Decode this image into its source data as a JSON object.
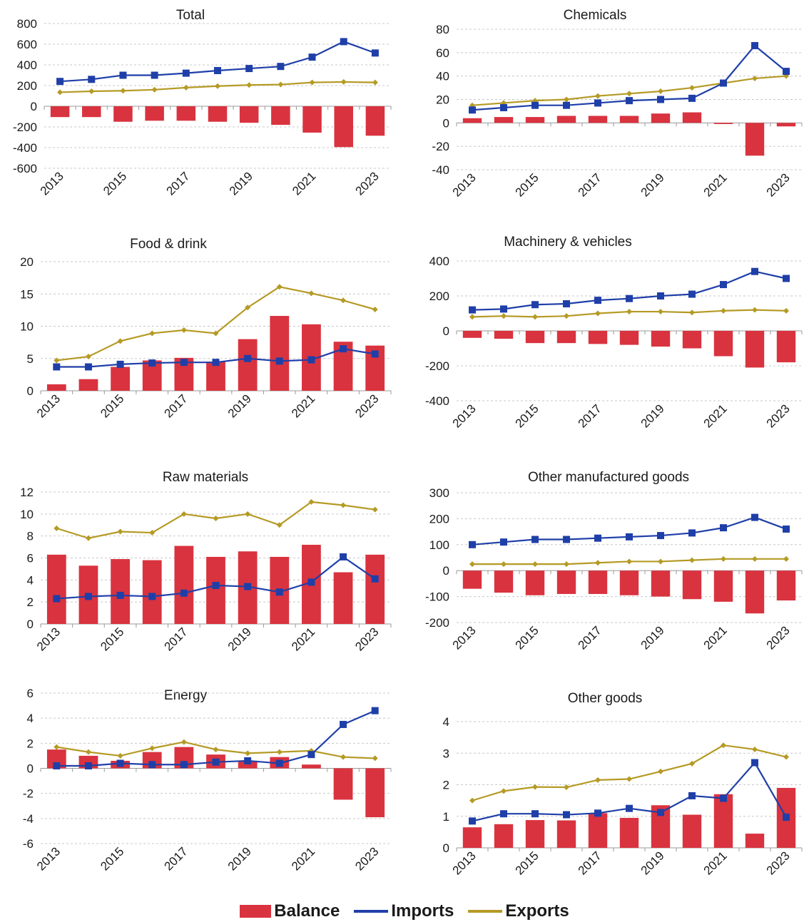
{
  "colors": {
    "balance": "#d9333f",
    "imports": "#1f3fa8",
    "exports": "#b59a25"
  },
  "legend": {
    "balance": "Balance",
    "imports": "Imports",
    "exports": "Exports"
  },
  "chart_data": [
    {
      "type": "bar",
      "title": "Total",
      "years": [
        "2013",
        "2014",
        "2015",
        "2016",
        "2017",
        "2018",
        "2019",
        "2020",
        "2021",
        "2022",
        "2023"
      ],
      "year_labels": [
        "2013",
        "2015",
        "2017",
        "2019",
        "2021",
        "2023"
      ],
      "ylim": [
        -600,
        800
      ],
      "yticks": [
        -600,
        -400,
        -200,
        0,
        200,
        400,
        600,
        800
      ],
      "series": [
        {
          "name": "Balance",
          "type": "bar",
          "values": [
            -105,
            -105,
            -150,
            -140,
            -140,
            -150,
            -160,
            -180,
            -255,
            -395,
            -285
          ]
        },
        {
          "name": "Imports",
          "type": "line",
          "values": [
            240,
            260,
            300,
            300,
            320,
            345,
            365,
            385,
            475,
            625,
            515
          ]
        },
        {
          "name": "Exports",
          "type": "line",
          "values": [
            135,
            145,
            150,
            160,
            180,
            195,
            205,
            210,
            230,
            235,
            230
          ]
        }
      ]
    },
    {
      "type": "bar",
      "title": "Chemicals",
      "years": [
        "2013",
        "2014",
        "2015",
        "2016",
        "2017",
        "2018",
        "2019",
        "2020",
        "2021",
        "2022",
        "2023"
      ],
      "year_labels": [
        "2013",
        "2015",
        "2017",
        "2019",
        "2021",
        "2023"
      ],
      "ylim": [
        -40,
        80
      ],
      "yticks": [
        -40,
        -20,
        0,
        20,
        40,
        60,
        80
      ],
      "series": [
        {
          "name": "Balance",
          "type": "bar",
          "values": [
            4,
            5,
            5,
            6,
            6,
            6,
            8,
            9,
            -1,
            -28,
            -3
          ]
        },
        {
          "name": "Imports",
          "type": "line",
          "values": [
            11,
            13,
            15,
            15,
            17,
            19,
            20,
            21,
            34,
            66,
            44
          ]
        },
        {
          "name": "Exports",
          "type": "line",
          "values": [
            15,
            17,
            19,
            20,
            23,
            25,
            27,
            30,
            34,
            38,
            40
          ]
        }
      ]
    },
    {
      "type": "bar",
      "title": "Food & drink",
      "years": [
        "2013",
        "2014",
        "2015",
        "2016",
        "2017",
        "2018",
        "2019",
        "2020",
        "2021",
        "2022",
        "2023"
      ],
      "year_labels": [
        "2013",
        "2015",
        "2017",
        "2019",
        "2021",
        "2023"
      ],
      "ylim": [
        0,
        20
      ],
      "yticks": [
        0,
        5,
        10,
        15,
        20
      ],
      "series": [
        {
          "name": "Balance",
          "type": "bar",
          "values": [
            1.0,
            1.8,
            3.7,
            4.7,
            5.1,
            4.5,
            8.0,
            11.6,
            10.3,
            7.6,
            7.0
          ]
        },
        {
          "name": "Imports",
          "type": "line",
          "values": [
            3.7,
            3.7,
            4.1,
            4.3,
            4.4,
            4.4,
            5.0,
            4.6,
            4.8,
            6.5,
            5.7
          ]
        },
        {
          "name": "Exports",
          "type": "line",
          "values": [
            4.7,
            5.3,
            7.7,
            8.9,
            9.4,
            8.9,
            12.9,
            16.1,
            15.1,
            14.0,
            12.6
          ]
        }
      ]
    },
    {
      "type": "bar",
      "title": "Machinery & vehicles",
      "years": [
        "2013",
        "2014",
        "2015",
        "2016",
        "2017",
        "2018",
        "2019",
        "2020",
        "2021",
        "2022",
        "2023"
      ],
      "year_labels": [
        "2013",
        "2015",
        "2017",
        "2019",
        "2021",
        "2023"
      ],
      "ylim": [
        -400,
        400
      ],
      "yticks": [
        -400,
        -200,
        0,
        200,
        400
      ],
      "series": [
        {
          "name": "Balance",
          "type": "bar",
          "values": [
            -40,
            -45,
            -70,
            -70,
            -75,
            -80,
            -90,
            -100,
            -145,
            -210,
            -180
          ]
        },
        {
          "name": "Imports",
          "type": "line",
          "values": [
            120,
            125,
            150,
            155,
            175,
            185,
            200,
            210,
            265,
            340,
            300
          ]
        },
        {
          "name": "Exports",
          "type": "line",
          "values": [
            80,
            85,
            80,
            85,
            100,
            110,
            110,
            105,
            115,
            120,
            115
          ]
        }
      ]
    },
    {
      "type": "bar",
      "title": "Raw materials",
      "years": [
        "2013",
        "2014",
        "2015",
        "2016",
        "2017",
        "2018",
        "2019",
        "2020",
        "2021",
        "2022",
        "2023"
      ],
      "year_labels": [
        "2013",
        "2015",
        "2017",
        "2019",
        "2021",
        "2023"
      ],
      "ylim": [
        0,
        12
      ],
      "yticks": [
        0,
        2,
        4,
        6,
        8,
        10,
        12
      ],
      "series": [
        {
          "name": "Balance",
          "type": "bar",
          "values": [
            6.3,
            5.3,
            5.9,
            5.8,
            7.1,
            6.1,
            6.6,
            6.1,
            7.2,
            4.7,
            6.3
          ]
        },
        {
          "name": "Imports",
          "type": "line",
          "values": [
            2.3,
            2.5,
            2.6,
            2.5,
            2.8,
            3.5,
            3.4,
            2.9,
            3.8,
            6.1,
            4.1
          ]
        },
        {
          "name": "Exports",
          "type": "line",
          "values": [
            8.7,
            7.8,
            8.4,
            8.3,
            10.0,
            9.6,
            10.0,
            9.0,
            11.1,
            10.8,
            10.4
          ]
        }
      ]
    },
    {
      "type": "bar",
      "title": "Other manufactured goods",
      "years": [
        "2013",
        "2014",
        "2015",
        "2016",
        "2017",
        "2018",
        "2019",
        "2020",
        "2021",
        "2022",
        "2023"
      ],
      "year_labels": [
        "2013",
        "2015",
        "2017",
        "2019",
        "2021",
        "2023"
      ],
      "ylim": [
        -200,
        300
      ],
      "yticks": [
        -200,
        -100,
        0,
        100,
        200,
        300
      ],
      "series": [
        {
          "name": "Balance",
          "type": "bar",
          "values": [
            -70,
            -85,
            -95,
            -90,
            -90,
            -95,
            -100,
            -110,
            -120,
            -165,
            -115
          ]
        },
        {
          "name": "Imports",
          "type": "line",
          "values": [
            100,
            110,
            120,
            120,
            125,
            130,
            135,
            145,
            165,
            205,
            160
          ]
        },
        {
          "name": "Exports",
          "type": "line",
          "values": [
            25,
            25,
            25,
            25,
            30,
            35,
            35,
            40,
            45,
            45,
            45
          ]
        }
      ]
    },
    {
      "type": "bar",
      "title": "Energy",
      "years": [
        "2013",
        "2014",
        "2015",
        "2016",
        "2017",
        "2018",
        "2019",
        "2020",
        "2021",
        "2022",
        "2023"
      ],
      "year_labels": [
        "2013",
        "2015",
        "2017",
        "2019",
        "2021",
        "2023"
      ],
      "ylim": [
        -6,
        6
      ],
      "yticks": [
        -6,
        -4,
        -2,
        0,
        2,
        4,
        6
      ],
      "series": [
        {
          "name": "Balance",
          "type": "bar",
          "values": [
            1.5,
            1.0,
            0.6,
            1.3,
            1.7,
            1.1,
            0.6,
            0.9,
            0.3,
            -2.5,
            -3.9
          ]
        },
        {
          "name": "Imports",
          "type": "line",
          "values": [
            0.2,
            0.2,
            0.4,
            0.3,
            0.3,
            0.5,
            0.6,
            0.4,
            1.1,
            3.5,
            4.6
          ]
        },
        {
          "name": "Exports",
          "type": "line",
          "values": [
            1.7,
            1.3,
            1.0,
            1.6,
            2.1,
            1.5,
            1.2,
            1.3,
            1.4,
            0.9,
            0.8
          ]
        }
      ]
    },
    {
      "type": "bar",
      "title": "Other goods",
      "years": [
        "2013",
        "2014",
        "2015",
        "2016",
        "2017",
        "2018",
        "2019",
        "2020",
        "2021",
        "2022",
        "2023"
      ],
      "year_labels": [
        "2013",
        "2015",
        "2017",
        "2019",
        "2021",
        "2023"
      ],
      "ylim": [
        0,
        4
      ],
      "yticks": [
        0,
        1,
        2,
        3,
        4
      ],
      "series": [
        {
          "name": "Balance",
          "type": "bar",
          "values": [
            0.65,
            0.75,
            0.88,
            0.87,
            1.1,
            0.95,
            1.35,
            1.05,
            1.7,
            0.45,
            1.9
          ]
        },
        {
          "name": "Imports",
          "type": "line",
          "values": [
            0.85,
            1.08,
            1.08,
            1.05,
            1.1,
            1.25,
            1.12,
            1.65,
            1.57,
            2.7,
            0.97
          ]
        },
        {
          "name": "Exports",
          "type": "line",
          "values": [
            1.5,
            1.8,
            1.93,
            1.92,
            2.15,
            2.18,
            2.42,
            2.67,
            3.25,
            3.12,
            2.88
          ]
        }
      ]
    }
  ]
}
